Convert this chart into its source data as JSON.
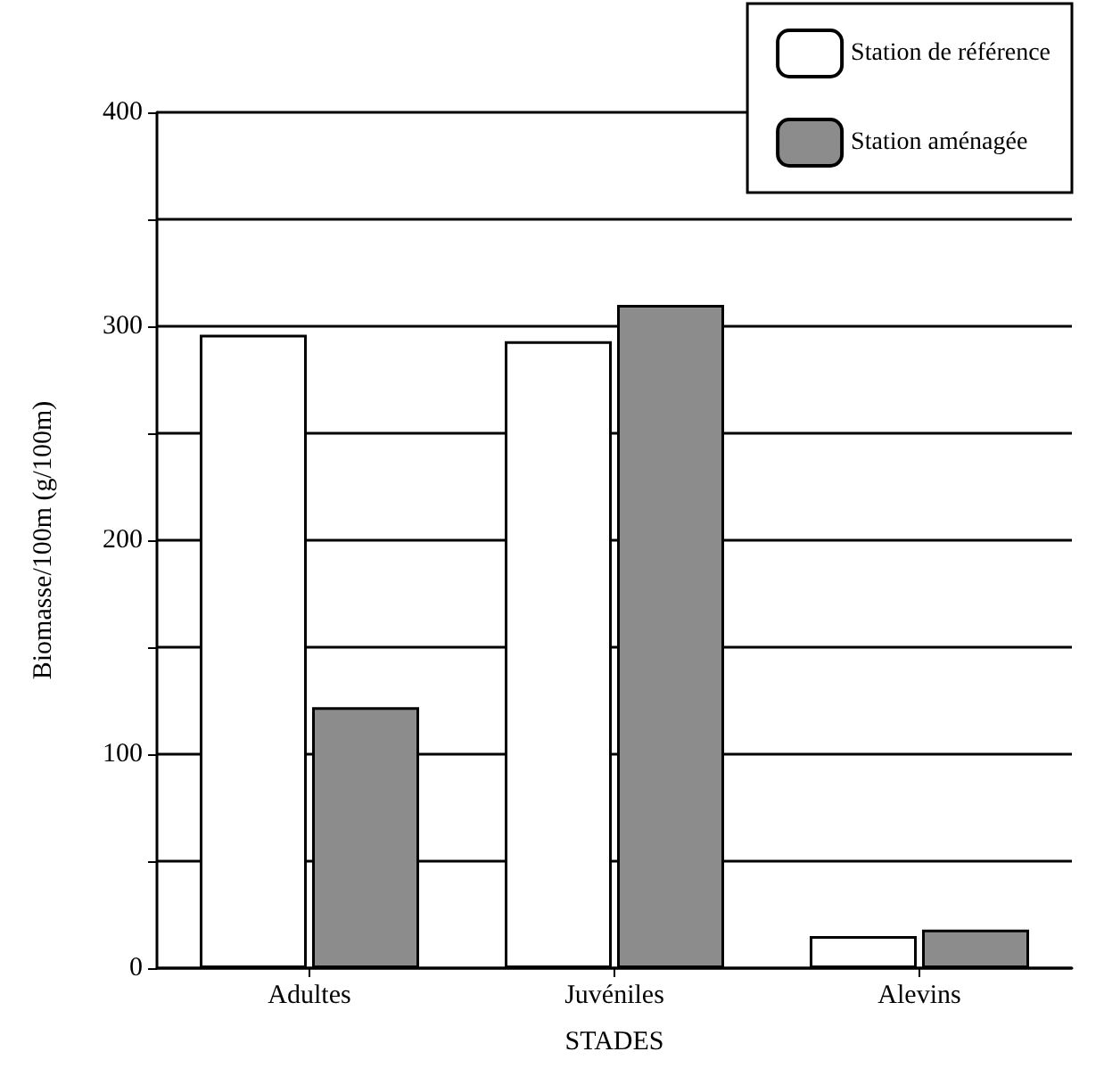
{
  "chart_data": {
    "type": "bar",
    "xlabel": "STADES",
    "ylabel": "Biomasse/100m (g/100m)",
    "categories": [
      "Adultes",
      "Juvéniles",
      "Alevins"
    ],
    "series": [
      {
        "name": "Station de référence",
        "color": "#ffffff",
        "values": [
          296,
          293,
          15
        ]
      },
      {
        "name": "Station aménagée",
        "color": "#8c8c8c",
        "values": [
          122,
          310,
          18
        ]
      }
    ],
    "ylim": [
      0,
      400
    ],
    "yticks": [
      0,
      {
        "value": 50,
        "label": null
      },
      100,
      {
        "value": 150,
        "label": null
      },
      200,
      {
        "value": 250,
        "label": null
      },
      300,
      {
        "value": 350,
        "label": null
      },
      400
    ],
    "grid": "y",
    "legend": "top right"
  }
}
